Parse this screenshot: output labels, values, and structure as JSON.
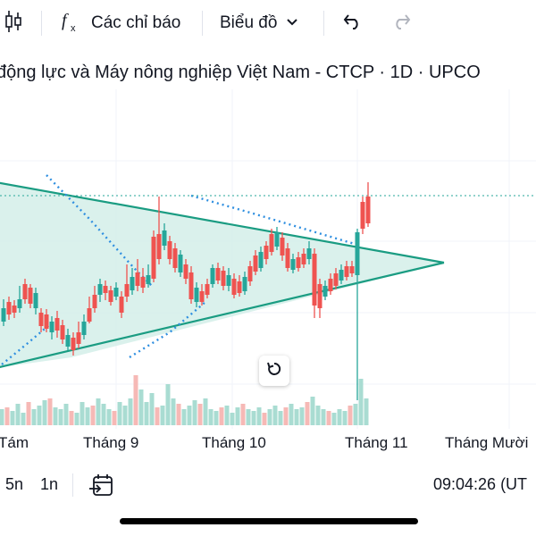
{
  "toolbar": {
    "indicators_label": "Các chỉ báo",
    "chart_type_label": "Biểu đồ",
    "icons": [
      "candles-icon",
      "fx-icon",
      "chevron-down-icon",
      "undo-icon",
      "redo-icon"
    ]
  },
  "chart": {
    "title": "động lực và Máy nông nghiệp Việt Nam - CTCP · 1D · UPCO",
    "x_labels": [
      "Tám",
      "Tháng 9",
      "Tháng 10",
      "Tháng 11",
      "Tháng Mười"
    ],
    "colors": {
      "up": "#26a69a",
      "down": "#ef5350",
      "triangle_fill": "#d3efe9",
      "triangle_stroke": "#1a9c82",
      "trendline_dots": "#2f8fe0",
      "volume_up": "#a9dcd2",
      "volume_down": "#f6b9b6",
      "price_line": "#26a69a"
    }
  },
  "bottom": {
    "range_5n": "5n",
    "range_1n": "1n",
    "time": "09:04:26 (UT"
  },
  "reset_icon": "reset-icon"
}
